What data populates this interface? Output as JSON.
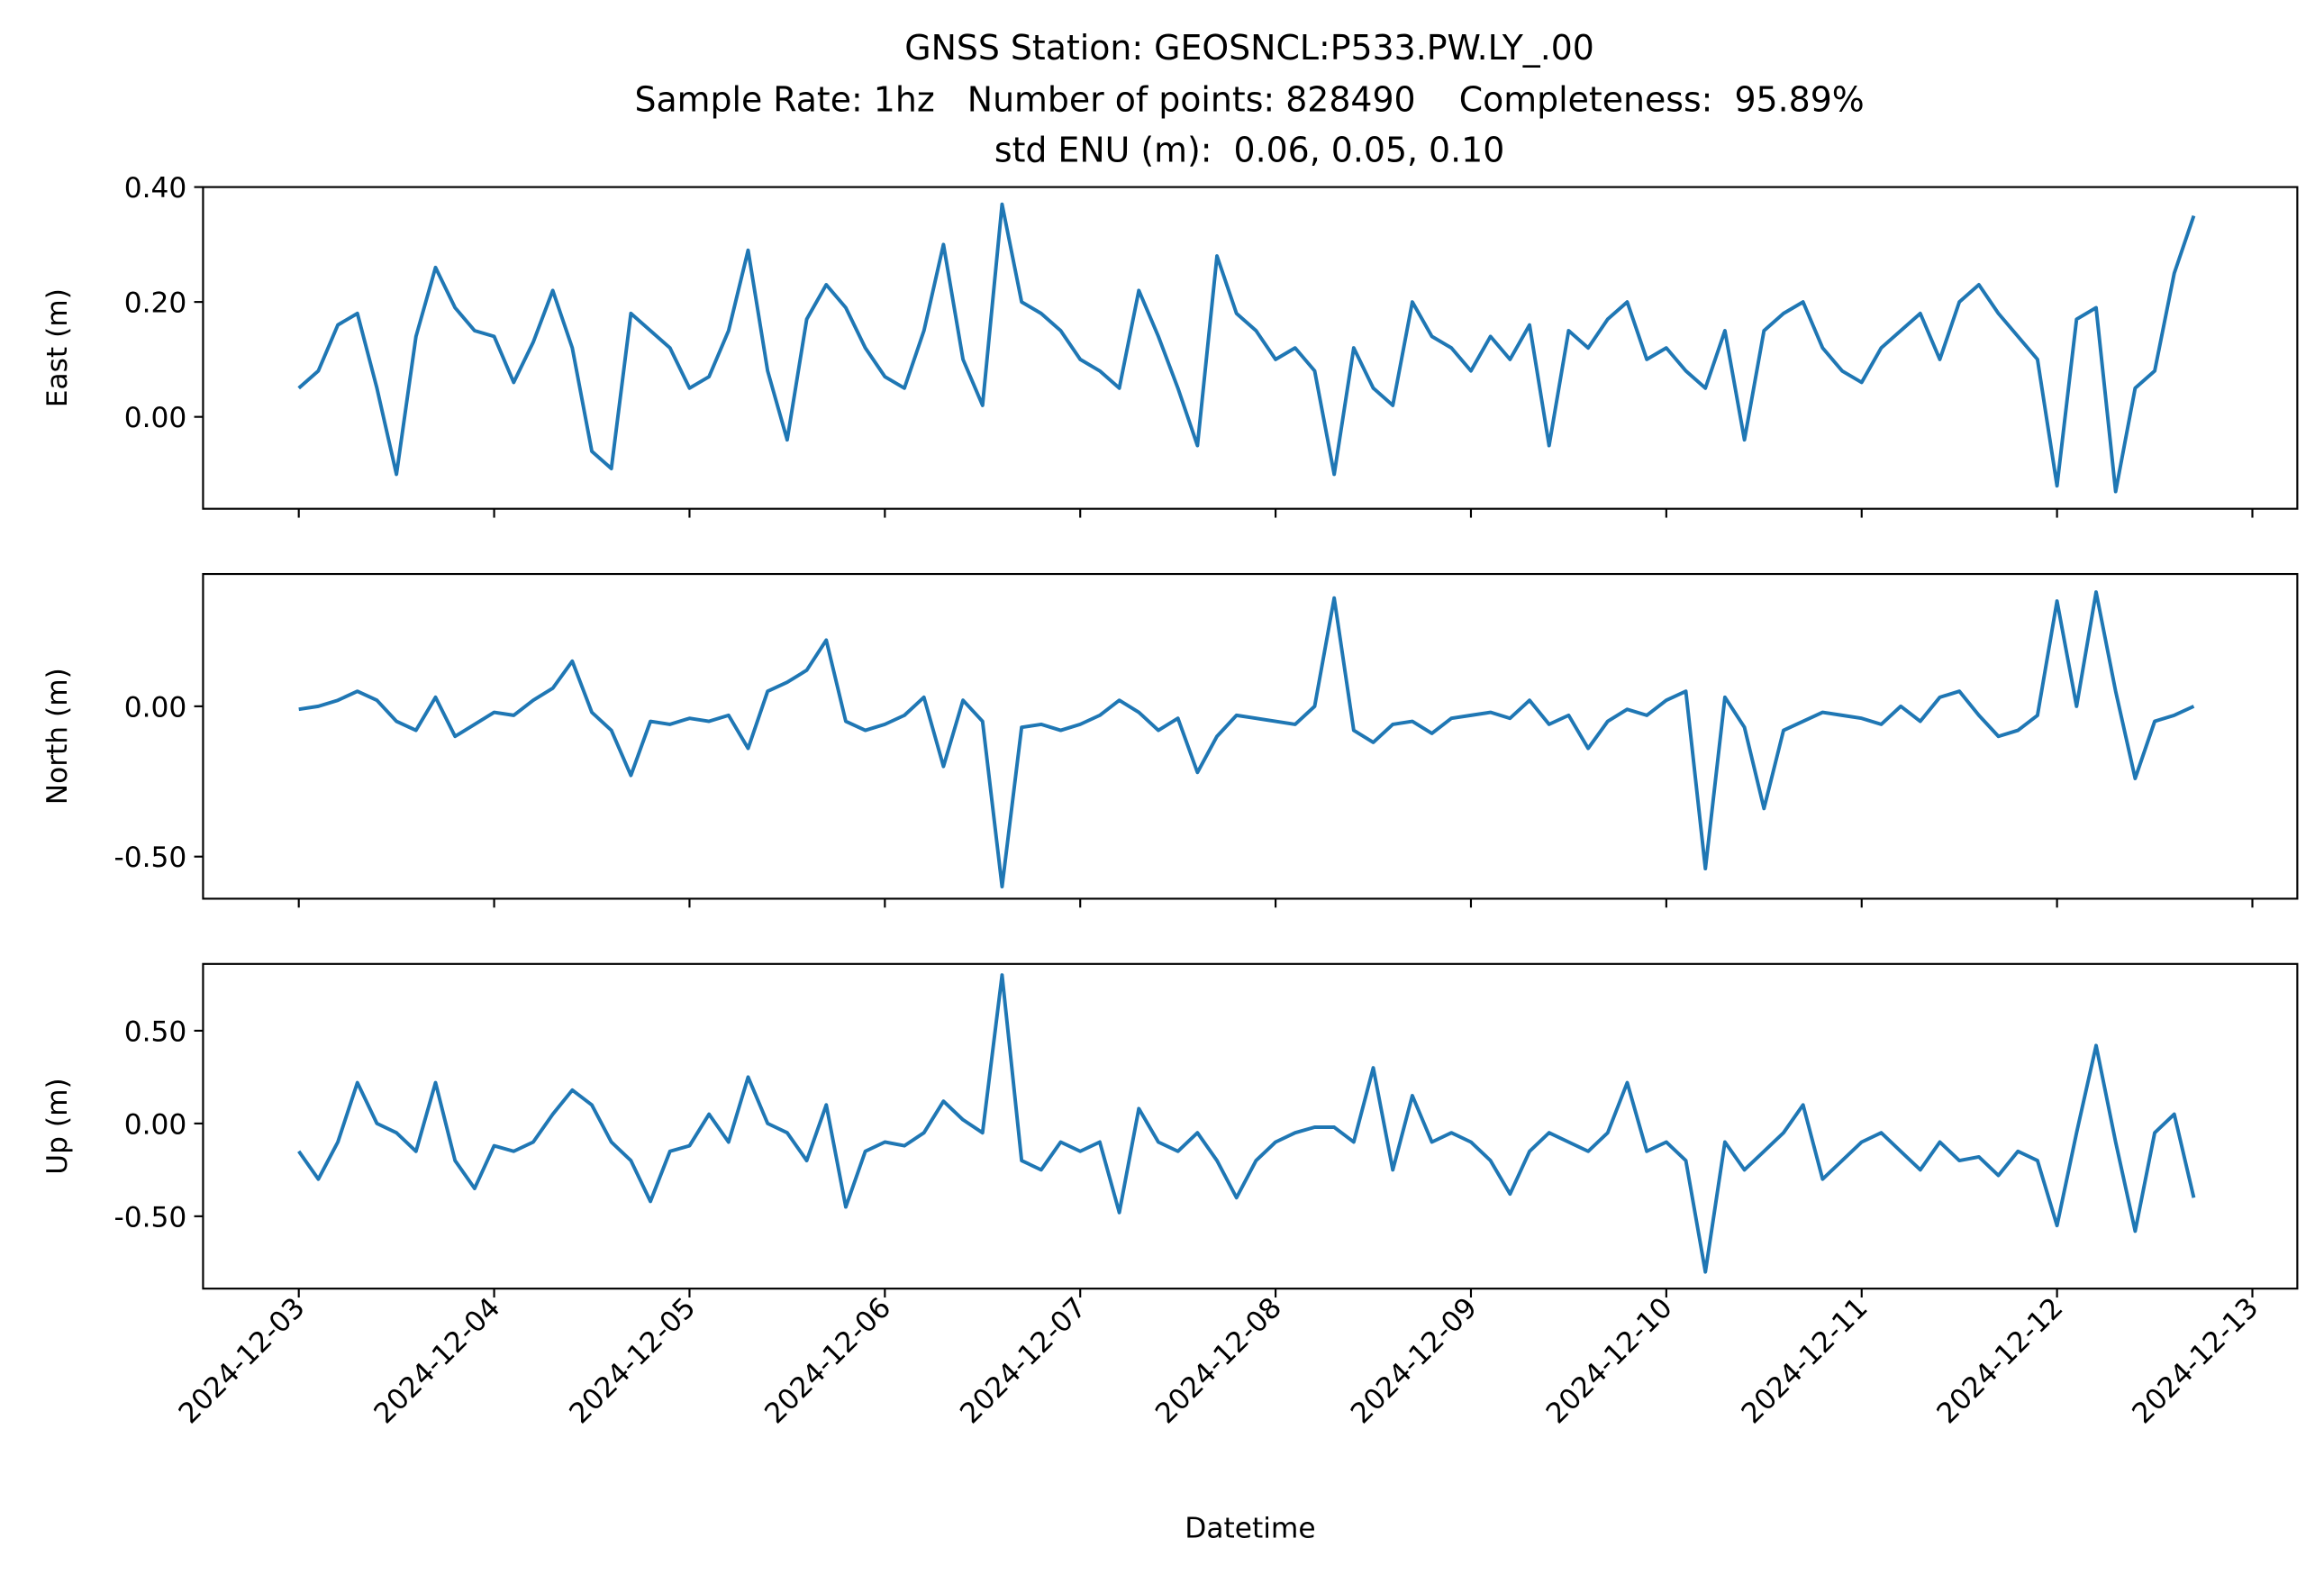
{
  "figure": {
    "title": [
      "GNSS Station: GEOSNCL:P533.PW.LY_.00",
      "Sample Rate: 1hz   Number of points: 828490    Completeness:  95.89%",
      "std ENU (m):  0.06, 0.05, 0.10"
    ]
  },
  "chart_data": [
    {
      "type": "line",
      "ylabel": "East (m)",
      "color": "#1f77b4",
      "x": [
        0,
        0.1,
        0.2,
        0.3,
        0.4,
        0.5,
        0.6,
        0.7,
        0.8,
        0.9,
        1,
        1.1,
        1.2,
        1.3,
        1.4,
        1.5,
        1.6,
        1.7,
        1.8,
        1.9,
        2,
        2.1,
        2.2,
        2.3,
        2.4,
        2.5,
        2.6,
        2.7,
        2.8,
        2.9,
        3,
        3.1,
        3.2,
        3.3,
        3.4,
        3.5,
        3.6,
        3.7,
        3.8,
        3.9,
        4,
        4.1,
        4.2,
        4.3,
        4.4,
        4.5,
        4.6,
        4.7,
        4.8,
        4.9,
        5,
        5.1,
        5.2,
        5.3,
        5.4,
        5.5,
        5.6,
        5.7,
        5.8,
        5.9,
        6,
        6.1,
        6.2,
        6.3,
        6.4,
        6.5,
        6.6,
        6.7,
        6.8,
        6.9,
        7,
        7.1,
        7.2,
        7.3,
        7.4,
        7.5,
        7.6,
        7.7,
        7.8,
        7.9,
        8,
        8.1,
        8.2,
        8.3,
        8.4,
        8.5,
        8.6,
        8.7,
        8.8,
        8.9,
        9,
        9.1,
        9.2,
        9.3,
        9.4,
        9.5,
        9.6,
        9.7
      ],
      "values": [
        0.05,
        0.08,
        0.16,
        0.18,
        0.05,
        -0.1,
        0.14,
        0.26,
        0.19,
        0.15,
        0.14,
        0.06,
        0.13,
        0.22,
        0.12,
        -0.06,
        -0.09,
        0.18,
        0.15,
        0.12,
        0.05,
        0.07,
        0.15,
        0.29,
        0.08,
        -0.04,
        0.17,
        0.23,
        0.19,
        0.12,
        0.07,
        0.05,
        0.15,
        0.3,
        0.1,
        0.02,
        0.37,
        0.2,
        0.18,
        0.15,
        0.1,
        0.08,
        0.05,
        0.22,
        0.14,
        0.05,
        -0.05,
        0.28,
        0.18,
        0.15,
        0.1,
        0.12,
        0.08,
        -0.1,
        0.12,
        0.05,
        0.02,
        0.2,
        0.14,
        0.12,
        0.08,
        0.14,
        0.1,
        0.16,
        -0.05,
        0.15,
        0.12,
        0.17,
        0.2,
        0.1,
        0.12,
        0.08,
        0.05,
        0.15,
        -0.04,
        0.15,
        0.18,
        0.2,
        0.12,
        0.08,
        0.06,
        0.12,
        0.15,
        0.18,
        0.1,
        0.2,
        0.23,
        0.18,
        0.14,
        0.1,
        -0.12,
        0.17,
        0.19,
        -0.13,
        0.05,
        0.08,
        0.25,
        0.35
      ],
      "xlim": [
        -0.49,
        10.23
      ],
      "xticks": [
        {
          "value": 0,
          "label": "2024-12-03"
        },
        {
          "value": 1,
          "label": "2024-12-04"
        },
        {
          "value": 2,
          "label": "2024-12-05"
        },
        {
          "value": 3,
          "label": "2024-12-06"
        },
        {
          "value": 4,
          "label": "2024-12-07"
        },
        {
          "value": 5,
          "label": "2024-12-08"
        },
        {
          "value": 6,
          "label": "2024-12-09"
        },
        {
          "value": 7,
          "label": "2024-12-10"
        },
        {
          "value": 8,
          "label": "2024-12-11"
        },
        {
          "value": 9,
          "label": "2024-12-12"
        },
        {
          "value": 10,
          "label": "2024-12-13"
        }
      ],
      "ylim": [
        -0.16,
        0.4
      ],
      "yticks": [
        {
          "value": 0,
          "label": "0.00"
        },
        {
          "value": 0.2,
          "label": "0.20"
        },
        {
          "value": 0.4,
          "label": "0.40"
        }
      ]
    },
    {
      "type": "line",
      "ylabel": "North (m)",
      "color": "#1f77b4",
      "x": [
        0,
        0.1,
        0.2,
        0.3,
        0.4,
        0.5,
        0.6,
        0.7,
        0.8,
        0.9,
        1,
        1.1,
        1.2,
        1.3,
        1.4,
        1.5,
        1.6,
        1.7,
        1.8,
        1.9,
        2,
        2.1,
        2.2,
        2.3,
        2.4,
        2.5,
        2.6,
        2.7,
        2.8,
        2.9,
        3,
        3.1,
        3.2,
        3.3,
        3.4,
        3.5,
        3.6,
        3.7,
        3.8,
        3.9,
        4,
        4.1,
        4.2,
        4.3,
        4.4,
        4.5,
        4.6,
        4.7,
        4.8,
        4.9,
        5,
        5.1,
        5.2,
        5.3,
        5.4,
        5.5,
        5.6,
        5.7,
        5.8,
        5.9,
        6,
        6.1,
        6.2,
        6.3,
        6.4,
        6.5,
        6.6,
        6.7,
        6.8,
        6.9,
        7,
        7.1,
        7.2,
        7.3,
        7.4,
        7.5,
        7.6,
        7.7,
        7.8,
        7.9,
        8,
        8.1,
        8.2,
        8.3,
        8.4,
        8.5,
        8.6,
        8.7,
        8.8,
        8.9,
        9,
        9.1,
        9.2,
        9.3,
        9.4,
        9.5,
        9.6,
        9.7
      ],
      "values": [
        -0.01,
        0.0,
        0.02,
        0.05,
        0.02,
        -0.05,
        -0.08,
        0.03,
        -0.1,
        -0.06,
        -0.02,
        -0.03,
        0.02,
        0.06,
        0.15,
        -0.02,
        -0.08,
        -0.23,
        -0.05,
        -0.06,
        -0.04,
        -0.05,
        -0.03,
        -0.14,
        0.05,
        0.08,
        0.12,
        0.22,
        -0.05,
        -0.08,
        -0.06,
        -0.03,
        0.03,
        -0.2,
        0.02,
        -0.05,
        -0.6,
        -0.07,
        -0.06,
        -0.08,
        -0.06,
        -0.03,
        0.02,
        -0.02,
        -0.08,
        -0.04,
        -0.22,
        -0.1,
        -0.03,
        -0.04,
        -0.05,
        -0.06,
        0.0,
        0.36,
        -0.08,
        -0.12,
        -0.06,
        -0.05,
        -0.09,
        -0.04,
        -0.03,
        -0.02,
        -0.04,
        0.02,
        -0.06,
        -0.03,
        -0.14,
        -0.05,
        -0.01,
        -0.03,
        0.02,
        0.05,
        -0.54,
        0.03,
        -0.07,
        -0.34,
        -0.08,
        -0.05,
        -0.02,
        -0.03,
        -0.04,
        -0.06,
        0.0,
        -0.05,
        0.03,
        0.05,
        -0.03,
        -0.1,
        -0.08,
        -0.03,
        0.35,
        0.0,
        0.38,
        0.05,
        -0.24,
        -0.05,
        -0.03,
        0.0
      ],
      "xlim": [
        -0.49,
        10.23
      ],
      "xticks": [
        {
          "value": 0,
          "label": "2024-12-03"
        },
        {
          "value": 1,
          "label": "2024-12-04"
        },
        {
          "value": 2,
          "label": "2024-12-05"
        },
        {
          "value": 3,
          "label": "2024-12-06"
        },
        {
          "value": 4,
          "label": "2024-12-07"
        },
        {
          "value": 5,
          "label": "2024-12-08"
        },
        {
          "value": 6,
          "label": "2024-12-09"
        },
        {
          "value": 7,
          "label": "2024-12-10"
        },
        {
          "value": 8,
          "label": "2024-12-11"
        },
        {
          "value": 9,
          "label": "2024-12-12"
        },
        {
          "value": 10,
          "label": "2024-12-13"
        }
      ],
      "ylim": [
        -0.64,
        0.44
      ],
      "yticks": [
        {
          "value": -0.5,
          "label": "-0.50"
        },
        {
          "value": 0,
          "label": "0.00"
        }
      ]
    },
    {
      "type": "line",
      "ylabel": "Up (m)",
      "xlabel": "Datetime",
      "color": "#1f77b4",
      "x": [
        0,
        0.1,
        0.2,
        0.3,
        0.4,
        0.5,
        0.6,
        0.7,
        0.8,
        0.9,
        1,
        1.1,
        1.2,
        1.3,
        1.4,
        1.5,
        1.6,
        1.7,
        1.8,
        1.9,
        2,
        2.1,
        2.2,
        2.3,
        2.4,
        2.5,
        2.6,
        2.7,
        2.8,
        2.9,
        3,
        3.1,
        3.2,
        3.3,
        3.4,
        3.5,
        3.6,
        3.7,
        3.8,
        3.9,
        4,
        4.1,
        4.2,
        4.3,
        4.4,
        4.5,
        4.6,
        4.7,
        4.8,
        4.9,
        5,
        5.1,
        5.2,
        5.3,
        5.4,
        5.5,
        5.6,
        5.7,
        5.8,
        5.9,
        6,
        6.1,
        6.2,
        6.3,
        6.4,
        6.5,
        6.6,
        6.7,
        6.8,
        6.9,
        7,
        7.1,
        7.2,
        7.3,
        7.4,
        7.5,
        7.6,
        7.7,
        7.8,
        7.9,
        8,
        8.1,
        8.2,
        8.3,
        8.4,
        8.5,
        8.6,
        8.7,
        8.8,
        8.9,
        9,
        9.1,
        9.2,
        9.3,
        9.4,
        9.5,
        9.6,
        9.7
      ],
      "values": [
        -0.15,
        -0.3,
        -0.1,
        0.22,
        0.0,
        -0.05,
        -0.15,
        0.22,
        -0.2,
        -0.35,
        -0.12,
        -0.15,
        -0.1,
        0.05,
        0.18,
        0.1,
        -0.1,
        -0.2,
        -0.42,
        -0.15,
        -0.12,
        0.05,
        -0.1,
        0.25,
        0.0,
        -0.05,
        -0.2,
        0.1,
        -0.45,
        -0.15,
        -0.1,
        -0.12,
        -0.05,
        0.12,
        0.02,
        -0.05,
        0.8,
        -0.2,
        -0.25,
        -0.1,
        -0.15,
        -0.1,
        -0.48,
        0.08,
        -0.1,
        -0.15,
        -0.05,
        -0.2,
        -0.4,
        -0.2,
        -0.1,
        -0.05,
        -0.02,
        -0.02,
        -0.1,
        0.3,
        -0.25,
        0.15,
        -0.1,
        -0.05,
        -0.1,
        -0.2,
        -0.38,
        -0.15,
        -0.05,
        -0.1,
        -0.15,
        -0.05,
        0.22,
        -0.15,
        -0.1,
        -0.2,
        -0.8,
        -0.1,
        -0.25,
        -0.15,
        -0.05,
        0.1,
        -0.3,
        -0.2,
        -0.1,
        -0.05,
        -0.15,
        -0.25,
        -0.1,
        -0.2,
        -0.18,
        -0.28,
        -0.15,
        -0.2,
        -0.55,
        -0.05,
        0.42,
        -0.1,
        -0.58,
        -0.05,
        0.05,
        -0.4
      ],
      "xlim": [
        -0.49,
        10.23
      ],
      "xticks": [
        {
          "value": 0,
          "label": "2024-12-03"
        },
        {
          "value": 1,
          "label": "2024-12-04"
        },
        {
          "value": 2,
          "label": "2024-12-05"
        },
        {
          "value": 3,
          "label": "2024-12-06"
        },
        {
          "value": 4,
          "label": "2024-12-07"
        },
        {
          "value": 5,
          "label": "2024-12-08"
        },
        {
          "value": 6,
          "label": "2024-12-09"
        },
        {
          "value": 7,
          "label": "2024-12-10"
        },
        {
          "value": 8,
          "label": "2024-12-11"
        },
        {
          "value": 9,
          "label": "2024-12-12"
        },
        {
          "value": 10,
          "label": "2024-12-13"
        }
      ],
      "ylim": [
        -0.89,
        0.86
      ],
      "yticks": [
        {
          "value": -0.5,
          "label": "-0.50"
        },
        {
          "value": 0,
          "label": "0.00"
        },
        {
          "value": 0.5,
          "label": "0.50"
        }
      ]
    }
  ]
}
